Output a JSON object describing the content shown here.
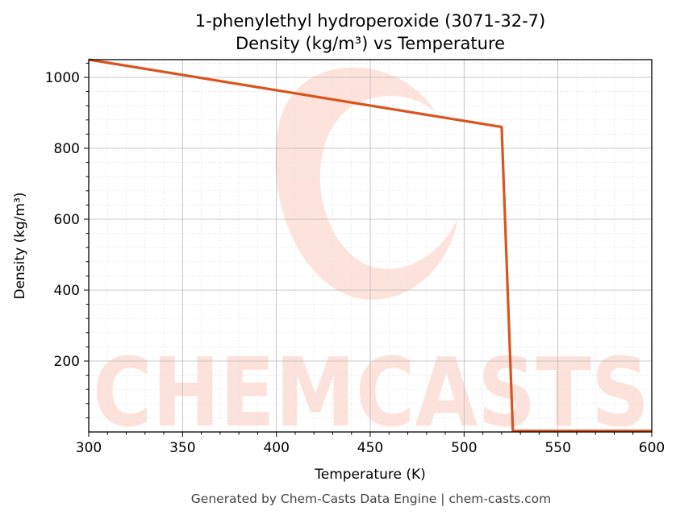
{
  "chart_data": {
    "type": "line",
    "title": "1-phenylethyl hydroperoxide (3071-32-7)",
    "subtitle": "Density (kg/m³) vs Temperature",
    "xlabel": "Temperature (K)",
    "ylabel": "Density (kg/m³)",
    "xlim": [
      300,
      600
    ],
    "ylim": [
      0,
      1050
    ],
    "xticks": [
      300,
      350,
      400,
      450,
      500,
      550,
      600
    ],
    "yticks": [
      200,
      400,
      600,
      800,
      1000
    ],
    "grid": true,
    "series": [
      {
        "color": "#d9541e",
        "x": [
          300,
          520,
          526,
          600
        ],
        "y": [
          1050,
          860,
          3,
          3
        ]
      }
    ]
  },
  "footer": "Generated by Chem-Casts Data Engine | chem-casts.com",
  "watermark": {
    "text": "CHEMCASTS",
    "color": "#fbd3c9"
  }
}
